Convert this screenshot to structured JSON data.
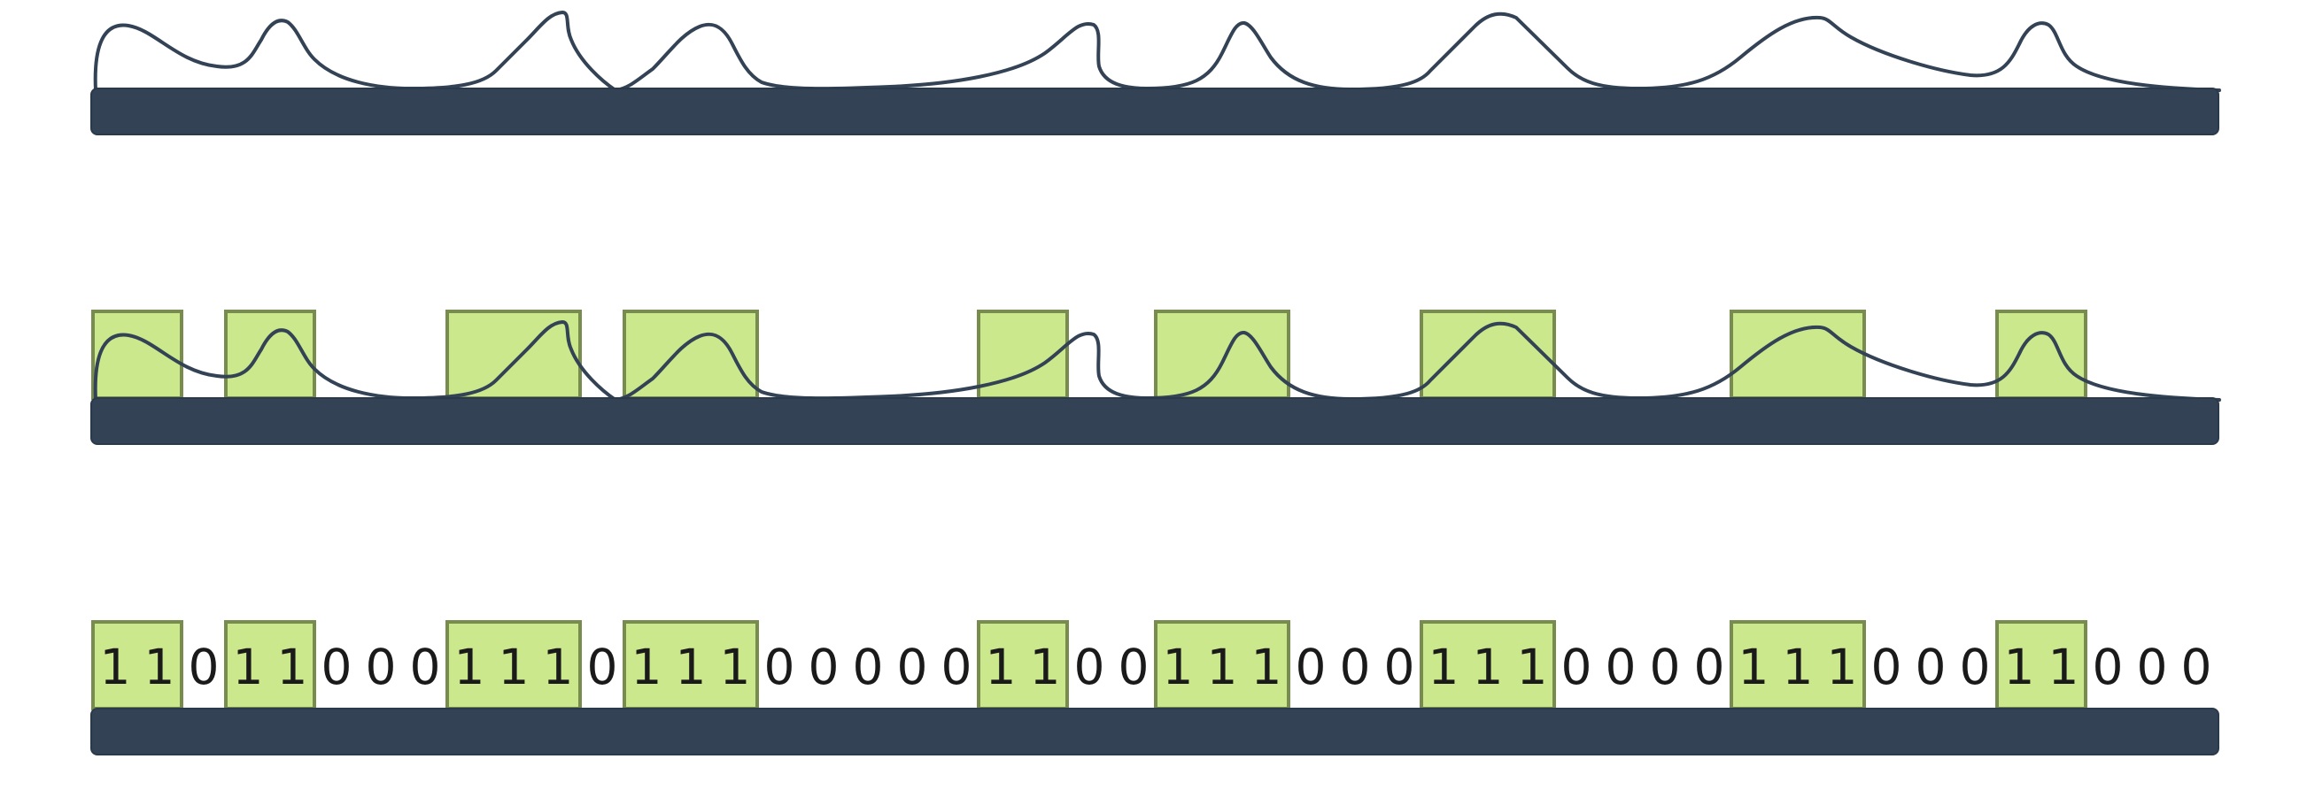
{
  "diagram": {
    "rows": [
      {
        "id": "signal",
        "show_cells": false,
        "show_bits": false
      },
      {
        "id": "signal-with-cells",
        "show_cells": true,
        "show_bits": false
      },
      {
        "id": "bits",
        "show_cells": true,
        "show_bits": true
      }
    ],
    "bits": [
      "1",
      "1",
      "0",
      "1",
      "1",
      "0",
      "0",
      "0",
      "1",
      "1",
      "1",
      "0",
      "1",
      "1",
      "1",
      "0",
      "0",
      "0",
      "0",
      "0",
      "1",
      "1",
      "0",
      "0",
      "1",
      "1",
      "1",
      "0",
      "0",
      "0",
      "1",
      "1",
      "1",
      "0",
      "0",
      "0",
      "0",
      "1",
      "1",
      "1",
      "0",
      "0",
      "0",
      "1",
      "1",
      "0",
      "0",
      "0"
    ],
    "colors": {
      "bar": "#334355",
      "wave": "#334355",
      "cell_fill": "#cce88c",
      "cell_stroke": "#788c50",
      "text": "#1a1a1a"
    }
  }
}
